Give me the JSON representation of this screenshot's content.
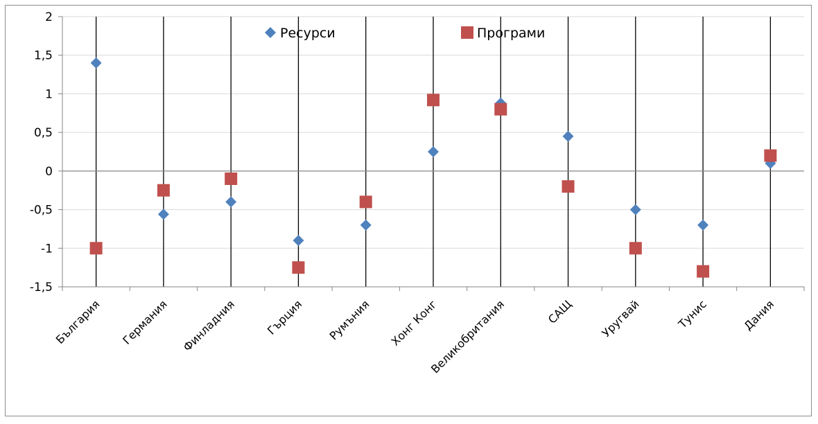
{
  "chart_data": {
    "type": "scatter",
    "categories": [
      "България",
      "Германия",
      "Финладния",
      "Гърция",
      "Румъния",
      "Хонг Конг",
      "Великобритания",
      "САЩ",
      "Уругвай",
      "Тунис",
      "Дания"
    ],
    "series": [
      {
        "name": "Ресурси",
        "color": "#4F81BD",
        "marker": "diamond",
        "values": [
          1.4,
          -0.56,
          -0.4,
          -0.9,
          -0.7,
          0.25,
          0.88,
          0.45,
          -0.5,
          -0.7,
          0.1
        ]
      },
      {
        "name": "Програми",
        "color": "#C0504D",
        "marker": "square",
        "values": [
          -1.0,
          -0.25,
          -0.1,
          -1.25,
          -0.4,
          0.92,
          0.8,
          -0.2,
          -1.0,
          -1.3,
          0.2
        ]
      }
    ],
    "yticks": [
      "2",
      "1,5",
      "1",
      "0,5",
      "0",
      "-0,5",
      "-1",
      "-1,5"
    ],
    "ylim": [
      -1.5,
      2
    ],
    "grid": true,
    "legend": "top-center"
  }
}
